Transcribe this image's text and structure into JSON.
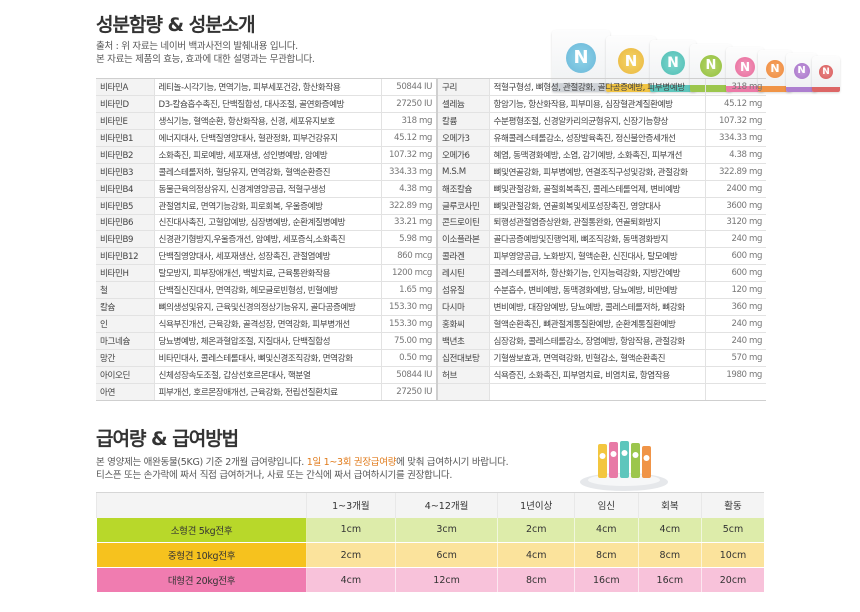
{
  "section1": {
    "title": "성분함량 & 성분소개",
    "note1": "출처 : 위 자료는 네이버 백과사전의 발췌내용 입니다.",
    "note2": "본 자료는 제품의 효능, 효과에 대한 설명과는 무관합니다.",
    "product_logo": "N"
  },
  "ingredients_left": [
    {
      "name": "비타민A",
      "desc": "레티놀-시각기능, 면역기능, 피부세포건강, 항산화작용",
      "amount": "50844 IU"
    },
    {
      "name": "비타민D",
      "desc": "D3-칼슘흡수촉진, 단백질합성, 대사조절, 골연화증예방",
      "amount": "27250 IU"
    },
    {
      "name": "비타민E",
      "desc": "생식기능, 혈액순환, 항산화작용, 신경, 세포유지보호",
      "amount": "318 mg"
    },
    {
      "name": "비타민B1",
      "desc": "에너지대사, 단백질영양대사, 혈관정화, 피부건강유지",
      "amount": "45.12 mg"
    },
    {
      "name": "비타민B2",
      "desc": "소화촉진, 피로예방, 세포재생, 성인병예방, 암예방",
      "amount": "107.32 mg"
    },
    {
      "name": "비타민B3",
      "desc": "콜레스테롤저하, 혈당유지, 면역강화, 혈액순환증진",
      "amount": "334.33 mg"
    },
    {
      "name": "비타민B4",
      "desc": "동물근육의정상유지, 신경계영양공급, 적혈구생성",
      "amount": "4.38 mg"
    },
    {
      "name": "비타민B5",
      "desc": "관절염치료, 면역기능강화, 피로회복, 우울증예방",
      "amount": "322.89 mg"
    },
    {
      "name": "비타민B6",
      "desc": "신진대사촉진, 고혈압예방, 심장병예방, 순환계질병예방",
      "amount": "33.21 mg"
    },
    {
      "name": "비타민B9",
      "desc": "신경관기형방지,우울증개선, 암예방, 세포증식,소화촉진",
      "amount": "5.98 mg"
    },
    {
      "name": "비타민B12",
      "desc": "단백질영양대사, 세포재생산, 성장촉진, 관절염예방",
      "amount": "860 mcg"
    },
    {
      "name": "비타민H",
      "desc": "탈모방지, 피부장애개선, 백발치료, 근육통완화작용",
      "amount": "1200 mcg"
    },
    {
      "name": "철",
      "desc": "단백질신진대사, 면역강화, 헤모글로빈형성, 빈혈예방",
      "amount": "1.65 mg"
    },
    {
      "name": "칼슘",
      "desc": "뼈의생성및유지, 근육및신경의정상기능유지, 골다공증예방",
      "amount": "153.30 mg"
    },
    {
      "name": "인",
      "desc": "식욕부진개선, 근육강화, 골격성장, 면역강화, 피부병개선",
      "amount": "153.30 mg"
    },
    {
      "name": "마그네슘",
      "desc": "당뇨병예방, 체온과혈압조절, 지질대사, 단백질합성",
      "amount": "75.00 mg"
    },
    {
      "name": "망간",
      "desc": "비타민대사, 콜레스테롤대사, 뼈및신경조직강화, 면역강화",
      "amount": "0.50 mg"
    },
    {
      "name": "아이오딘",
      "desc": "신체성장속도조절, 갑상선호르몬대사, 핵분열",
      "amount": "50844 IU"
    },
    {
      "name": "아연",
      "desc": "피부개선, 호르몬장애개선, 근육강화, 전립선질환치료",
      "amount": "27250 IU"
    }
  ],
  "ingredients_right": [
    {
      "name": "구리",
      "desc": "적혈구형성, 뼈형성, 관절강화, 골다공증예방, 피부병예방",
      "amount": "318 mg"
    },
    {
      "name": "셀레늄",
      "desc": "항암기능, 항산화작용, 피부미용, 심장혈관계질환예방",
      "amount": "45.12 mg"
    },
    {
      "name": "칼륨",
      "desc": "수분평형조절, 신경알카리의균형유지, 신장기능향상",
      "amount": "107.32 mg"
    },
    {
      "name": "오메가3",
      "desc": "유해콜레스테롤감소, 성장발육촉진, 정신불안증세개선",
      "amount": "334.33 mg"
    },
    {
      "name": "오메가6",
      "desc": "혜염, 동맥경화예방, 소염, 감기예방, 소화촉진, 피부개선",
      "amount": "4.38 mg"
    },
    {
      "name": "M.S.M",
      "desc": "뼈및연골강화, 피부병예방, 연결조직구성및강화, 관절강화",
      "amount": "322.89 mg"
    },
    {
      "name": "해조칼슘",
      "desc": "뼈및관절강화, 골절회복촉진, 콜레스테롤억제, 변비예방",
      "amount": "2400 mg"
    },
    {
      "name": "글루코사민",
      "desc": "뼈및관절강화, 연골회복및세포성장촉진, 영양대사",
      "amount": "3600 mg"
    },
    {
      "name": "콘드로이틴",
      "desc": "퇴행성관절염증상완화, 관절통완화, 연골퇴화방지",
      "amount": "3120 mg"
    },
    {
      "name": "이소플라본",
      "desc": "골다공증예방및진행억제, 뼈조직강화, 동맥경화방지",
      "amount": "240 mg"
    },
    {
      "name": "콜라겐",
      "desc": "피부영양공급, 노화방지, 혈액순환, 신진대사, 탈모예방",
      "amount": "600 mg"
    },
    {
      "name": "레시틴",
      "desc": "콜레스테롤저하, 항산화기능, 인지능력강화, 지방간예방",
      "amount": "600 mg"
    },
    {
      "name": "섬유질",
      "desc": "수분흡수, 변비예방, 동맥경화예방, 당뇨예방, 비만예방",
      "amount": "120 mg"
    },
    {
      "name": "다시마",
      "desc": "변비예방, 대장암예방, 당뇨예방, 콜레스테롤저하, 뼈강화",
      "amount": "360 mg"
    },
    {
      "name": "홍화씨",
      "desc": "혈액순환촉진, 뼈관절계통질환예방, 순환계통질환예방",
      "amount": "240 mg"
    },
    {
      "name": "백년초",
      "desc": "심장강화, 콜레스테롤감소, 장염예방, 항암작용, 관절강화",
      "amount": "240 mg"
    },
    {
      "name": "십전대보탕",
      "desc": "기혈쌍보효과, 면역력강화, 빈혈감소, 혈액순환촉진",
      "amount": "570 mg"
    },
    {
      "name": "허브",
      "desc": "식욕증진, 소화촉진, 피부염치료, 비염치료, 항염작용",
      "amount": "1980 mg"
    },
    {
      "name": "",
      "desc": "",
      "amount": ""
    }
  ],
  "section2": {
    "title": "급여량 & 급여방법",
    "note1_pre": "본 영양제는 애완동물(5KG) 기준 2개월 급여량입니다.",
    "note1_hl": "1일 1~3회 권장급여량",
    "note1_post": "에 맞춰 급여하시기 바랍니다.",
    "note2": "티스픈 또는 손가락에 짜서 직접 급여하거나, 사료 또는 간식에 짜서 급여하시기를 권장합니다."
  },
  "dose_table": {
    "headers": [
      "",
      "1~3개월",
      "4~12개월",
      "1년이상",
      "임신",
      "회복",
      "활동"
    ],
    "rows": [
      {
        "label": "소형견 5kg전후",
        "values": [
          "1cm",
          "3cm",
          "2cm",
          "4cm",
          "4cm",
          "5cm"
        ]
      },
      {
        "label": "중형견 10kg전후",
        "values": [
          "2cm",
          "6cm",
          "4cm",
          "8cm",
          "8cm",
          "10cm"
        ]
      },
      {
        "label": "대형견 20kg전후",
        "values": [
          "4cm",
          "12cm",
          "8cm",
          "16cm",
          "16cm",
          "20cm"
        ]
      }
    ]
  },
  "colors": {
    "small_dog": "#b8d82a",
    "medium_dog": "#f6c21e",
    "large_dog": "#f07cb0",
    "highlight": "#e07a1a"
  }
}
